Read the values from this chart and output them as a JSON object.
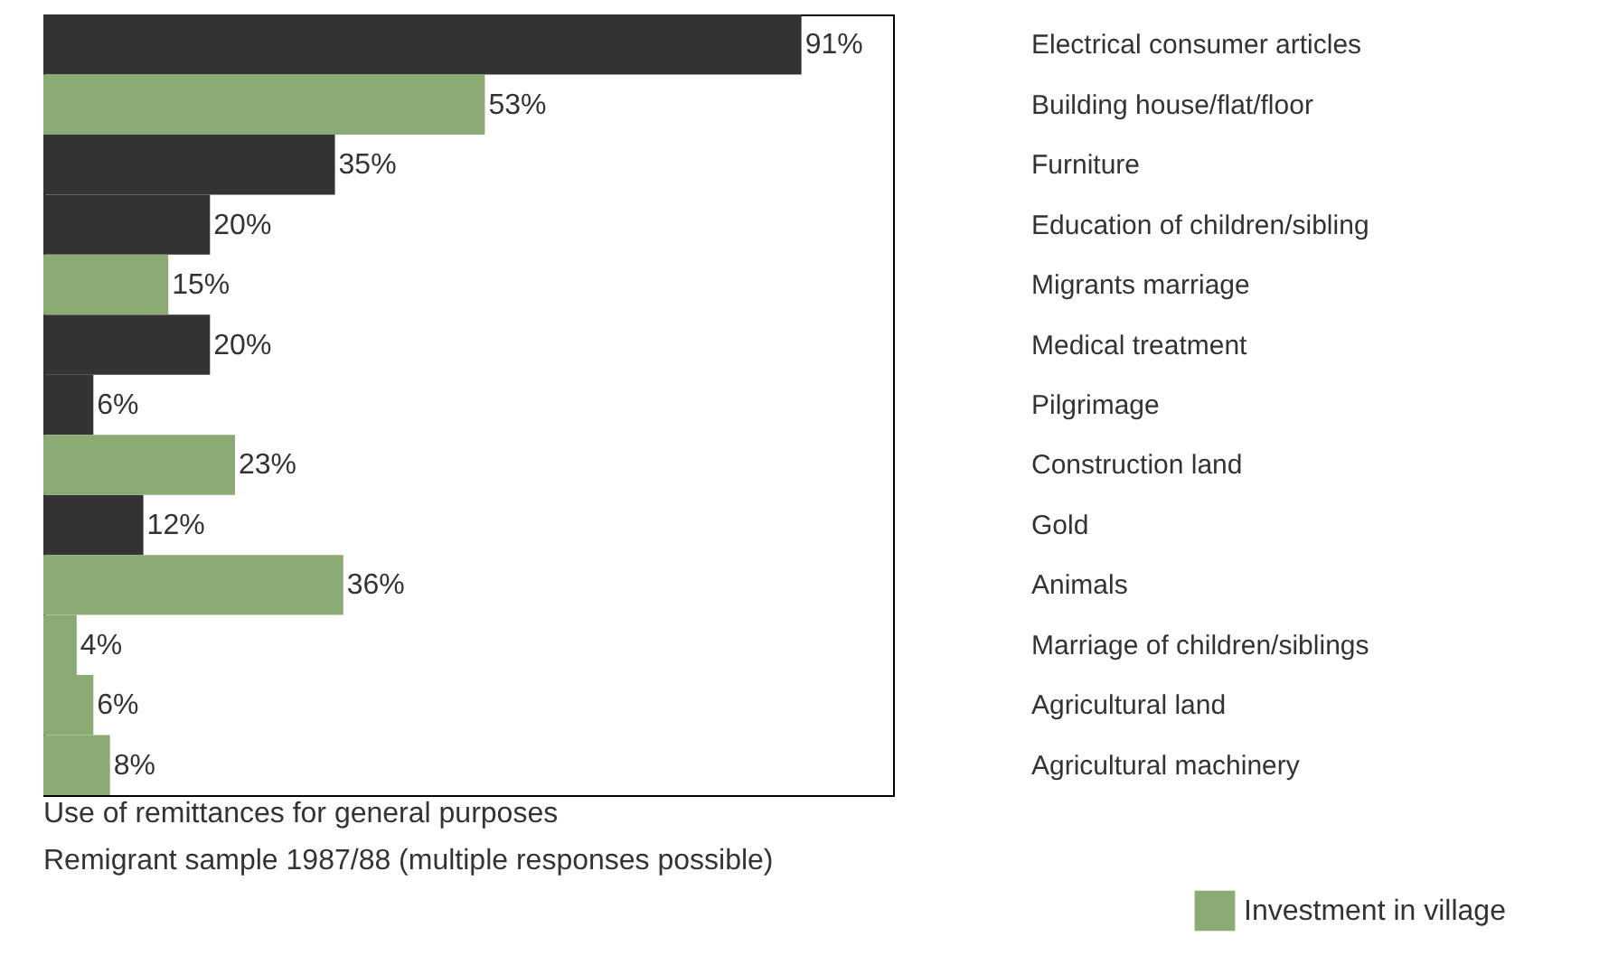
{
  "chart_data": {
    "type": "bar",
    "orientation": "horizontal",
    "categories": [
      "Electrical consumer articles",
      "Building house/flat/floor",
      "Furniture",
      "Education of children/sibling",
      "Migrants marriage",
      "Medical treatment",
      "Pilgrimage",
      "Construction land",
      "Gold",
      "Animals",
      "Marriage of children/siblings",
      "Agricultural land",
      "Agricultural machinery"
    ],
    "series": [
      {
        "color": "#333333",
        "values": [
          91,
          null,
          35,
          20,
          null,
          20,
          6,
          null,
          12,
          null,
          null,
          null,
          null
        ],
        "value_labels": [
          "91%",
          null,
          "35%",
          "20%",
          null,
          "20%",
          "6%",
          null,
          "12%",
          null,
          null,
          null,
          null
        ]
      },
      {
        "name": "Investment in village",
        "color": "#8cab74",
        "values": [
          null,
          53,
          null,
          null,
          15,
          null,
          null,
          23,
          null,
          36,
          4,
          6,
          8
        ],
        "value_labels": [
          null,
          "53%",
          null,
          null,
          "15%",
          null,
          null,
          "23%",
          null,
          "36%",
          "4%",
          "6%",
          "8%"
        ]
      }
    ],
    "xlim": [
      0,
      102
    ],
    "tick_labels": "y",
    "legend": "bottom right",
    "annotations": [
      "Use of remittances for general purposes",
      "Remigrant sample 1987/88 (multiple responses possible)"
    ]
  }
}
